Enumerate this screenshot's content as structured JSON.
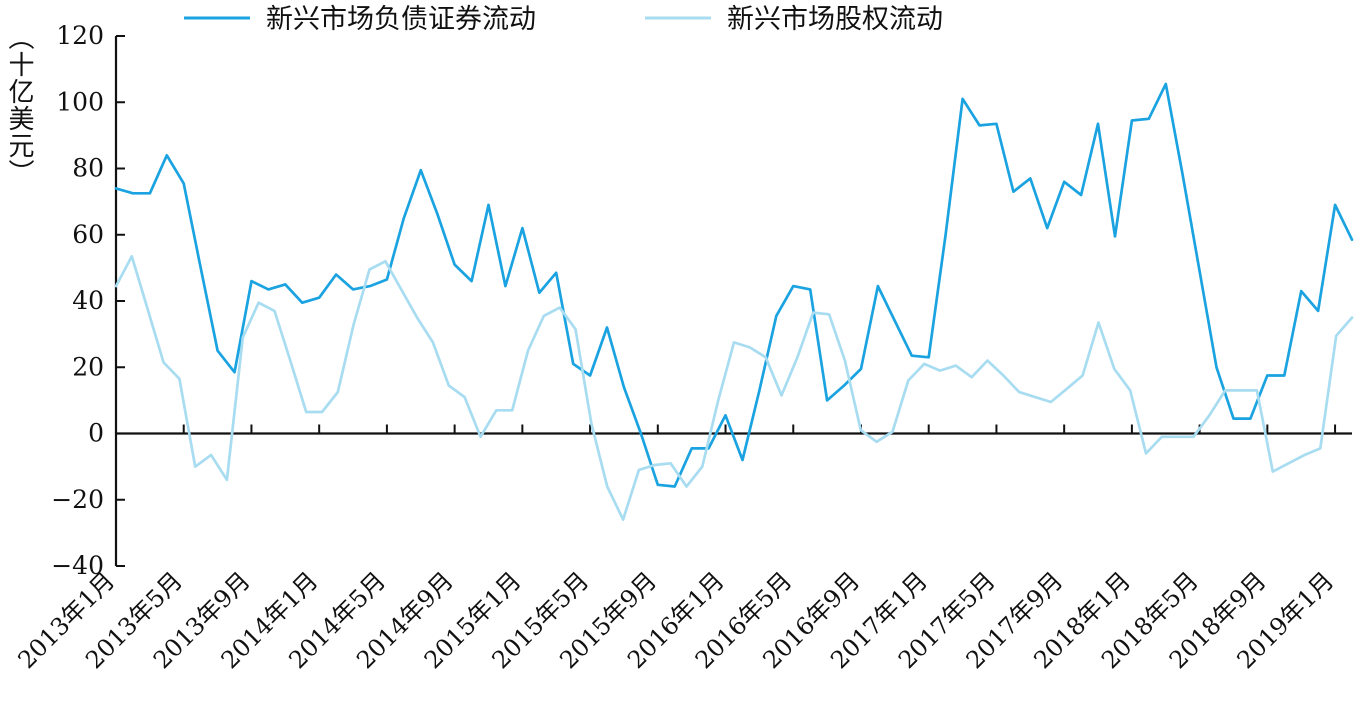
{
  "chart_data": {
    "type": "line",
    "ylabel": "（十亿美元）",
    "ylim": [
      -40,
      120
    ],
    "yticks": [
      -40,
      -20,
      0,
      20,
      40,
      60,
      80,
      100,
      120
    ],
    "grid": false,
    "legend_position": "top",
    "x_tick_labels": [
      "2013年1月",
      "2013年5月",
      "2013年9月",
      "2014年1月",
      "2014年5月",
      "2014年9月",
      "2015年1月",
      "2015年5月",
      "2015年9月",
      "2016年1月",
      "2016年5月",
      "2016年9月",
      "2017年1月",
      "2017年5月",
      "2017年9月",
      "2018年1月",
      "2018年5月",
      "2018年9月",
      "2019年1月"
    ],
    "x_start": "2013-01",
    "series": [
      {
        "name": "新兴市场负债证券流动",
        "color": "#1aa3e0",
        "values": [
          74,
          72.5,
          72.5,
          84,
          75.5,
          50,
          25,
          18.5,
          46,
          43.5,
          45,
          39.5,
          41,
          48,
          43.5,
          44.5,
          46.5,
          65,
          79.5,
          66,
          51,
          46,
          69,
          44.5,
          62,
          42.5,
          48.5,
          21,
          17.5,
          32,
          14,
          0,
          -15.5,
          -16,
          -4.5,
          -4.5,
          5.5,
          -8,
          13,
          35.5,
          44.5,
          43.5,
          10,
          14.5,
          19.5,
          44.5,
          34,
          23.5,
          23,
          60,
          101,
          93,
          93.5,
          73,
          77,
          62,
          76,
          72,
          93.5,
          59.5,
          94.5,
          95,
          105.5,
          78,
          49,
          20,
          4.5,
          4.5,
          17.5,
          17.5,
          43,
          37,
          69,
          58.5
        ]
      },
      {
        "name": "新兴市场股权流动",
        "color": "#a8dcf1",
        "values": [
          44.5,
          53.5,
          37.5,
          21.5,
          16.5,
          -10,
          -6.5,
          -14,
          29,
          39.5,
          37,
          22,
          6.5,
          6.5,
          12.5,
          33,
          49.5,
          52,
          43.5,
          35,
          27.5,
          14.5,
          11,
          -1,
          7,
          7,
          25,
          35.5,
          38,
          31.5,
          3,
          -16,
          -26,
          -11,
          -9.5,
          -9,
          -16,
          -10,
          10,
          27.5,
          26,
          23,
          11.5,
          23,
          36.5,
          36,
          22,
          1,
          -2.5,
          0.5,
          16,
          21,
          19,
          20.5,
          17,
          22,
          17.5,
          12.5,
          11,
          9.5,
          13.5,
          17.5,
          33.5,
          19.5,
          13,
          -6,
          -1,
          -1,
          -1,
          5.5,
          13,
          13,
          13,
          -11.5,
          -9,
          -6.5,
          -4.5,
          29.5,
          35
        ]
      }
    ]
  }
}
